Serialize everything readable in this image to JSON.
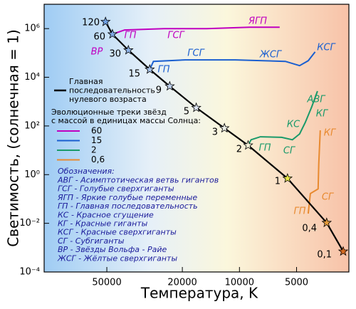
{
  "chart_data": {
    "type": "line",
    "x_label": "Температура, K",
    "y_label": "Светимость, (солнечная = 1)",
    "xscale": "log",
    "yscale": "log",
    "xlim": [
      107000,
      2650
    ],
    "ylim": [
      0.0001,
      10000000
    ],
    "xticks": [
      50000,
      20000,
      10000,
      5000
    ],
    "yticks": [
      {
        "value": 0.0001,
        "label": "10⁻⁴"
      },
      {
        "value": 0.01,
        "label": "10⁻²"
      },
      {
        "value": 1,
        "label": "10⁰"
      },
      {
        "value": 100,
        "label": "10²"
      },
      {
        "value": 10000,
        "label": "10⁴"
      },
      {
        "value": 1000000,
        "label": "10⁶"
      }
    ],
    "main_sequence": {
      "legend_lines": [
        "Главная",
        "последовательность",
        "нулевого возраста"
      ],
      "color": "#000000",
      "x": [
        50800,
        46700,
        38500,
        29700,
        23300,
        16900,
        12000,
        9000,
        5580,
        3470,
        2840
      ],
      "values": [
        1900000,
        590000,
        130000,
        21000,
        4300,
        560,
        81,
        16,
        0.7,
        0.0105,
        0.0007
      ],
      "mass_labels": [
        "120",
        "60",
        "30",
        "15",
        "9",
        "5",
        "3",
        "2",
        "1",
        "0,4",
        "0,1"
      ],
      "star_colors": [
        "#6f9fe0",
        "#7fa8e4",
        "#8fb4e8",
        "#a9c4ec",
        "#c0d2ee",
        "#dbe2f0",
        "#ecefe8",
        "#f4f1d8",
        "#e8e84a",
        "#e49a3a",
        "#d66a20"
      ]
    },
    "tracks_title": [
      "Эволюционные треки звёзд",
      "с массой в единицах массы Солнца:"
    ],
    "series": [
      {
        "name": "60",
        "color": "#c000c0",
        "x": [
          46700,
          40300,
          25000,
          14900,
          8850,
          6140
        ],
        "values": [
          590000,
          880000,
          1000000,
          1000000,
          1140000,
          1140000
        ]
      },
      {
        "name": "15",
        "color": "#1a5fd0",
        "x": [
          29700,
          28400,
          19300,
          10500,
          5730,
          4820,
          4340,
          3990
        ],
        "values": [
          21000,
          45000,
          52000,
          52000,
          45000,
          30000,
          48000,
          110000
        ]
      },
      {
        "name": "2",
        "color": "#1a9a6a",
        "x": [
          9000,
          8690,
          7760,
          5990,
          5260,
          4820,
          4500,
          4160,
          3880
        ],
        "values": [
          16,
          27,
          36,
          34,
          27,
          47,
          138,
          610,
          2700
        ]
      },
      {
        "name": "0,6",
        "color": "#e88a30",
        "x": [
          4340,
          4230,
          3850,
          3820,
          3750
        ],
        "values": [
          0.025,
          0.166,
          0.26,
          2.8,
          66
        ]
      }
    ],
    "annotations": [
      {
        "text": "ЯГП",
        "color": "#c000c0"
      },
      {
        "text": "ГП",
        "color": "#c000c0"
      },
      {
        "text": "ГСГ",
        "color": "#c000c0"
      },
      {
        "text": "ВР",
        "color": "#c000c0"
      },
      {
        "text": "ГСГ",
        "color": "#1a5fd0"
      },
      {
        "text": "ЖСГ",
        "color": "#1a5fd0"
      },
      {
        "text": "КСГ",
        "color": "#1a5fd0"
      },
      {
        "text": "ГП",
        "color": "#1a5fd0"
      },
      {
        "text": "АВГ",
        "color": "#1a9a6a"
      },
      {
        "text": "КГ",
        "color": "#1a9a6a"
      },
      {
        "text": "КС",
        "color": "#1a9a6a"
      },
      {
        "text": "СГ",
        "color": "#1a9a6a"
      },
      {
        "text": "ГП",
        "color": "#1a9a6a"
      },
      {
        "text": "КГ",
        "color": "#e88a30"
      },
      {
        "text": "СГ",
        "color": "#e88a30"
      },
      {
        "text": "ГП",
        "color": "#e88a30"
      }
    ],
    "notes_title": "Обозначения:",
    "notes": [
      "АВГ - Асимптотическая ветвь гигантов",
      "ГСГ - Голубые сверхгиганты",
      "ЯГП - Яркие голубые переменные",
      "ГП - Главная последовательность",
      "КС - Красное сгущение",
      "КГ - Красные гиганты",
      "КСГ - Красные сверхгиганты",
      "СГ - Субгиганты",
      "ВР - Звёзды Вольфа - Райе",
      "ЖСГ - Жёлтые сверхгиганты"
    ]
  }
}
